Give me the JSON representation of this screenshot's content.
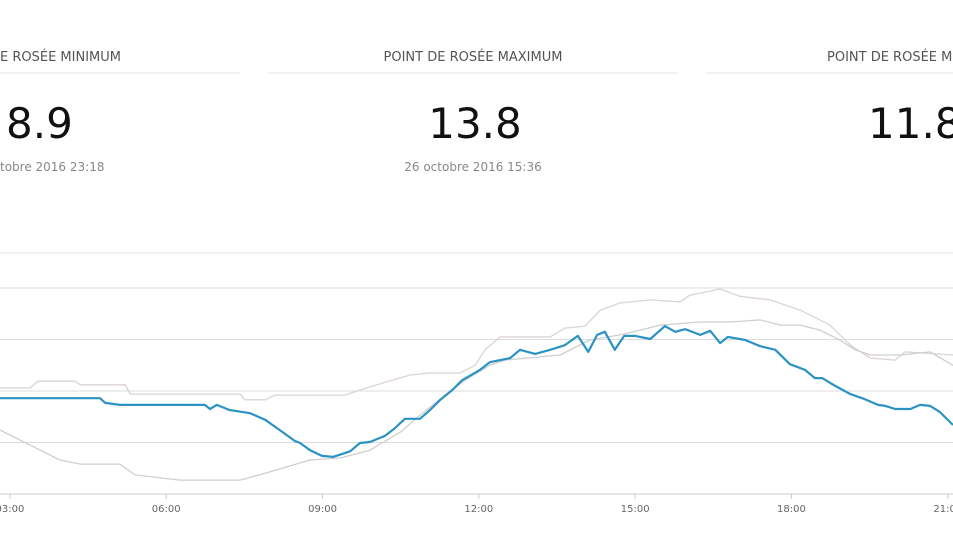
{
  "cards": [
    {
      "title": "E ROSÉE MINIMUM",
      "value": 8.9,
      "date": "tobre 2016 23:18"
    },
    {
      "title": "POINT DE ROSÉE MAXIMUM",
      "value": 13.8,
      "date": "26 octobre 2016 15:36"
    },
    {
      "title": "POINT DE ROSÉE M",
      "value": 11.8
    }
  ],
  "chart_data": {
    "type": "line",
    "xlim": [
      2.81,
      21.1
    ],
    "ylim": [
      10.5,
      15.18
    ],
    "xticks": [
      {
        "value": 3,
        "label": "03:00"
      },
      {
        "value": 6,
        "label": "06:00"
      },
      {
        "value": 9,
        "label": "09:00"
      },
      {
        "value": 12,
        "label": "12:00"
      },
      {
        "value": 15,
        "label": "15:00"
      },
      {
        "value": 18,
        "label": "18:00"
      },
      {
        "value": 21,
        "label": "21:00"
      }
    ],
    "yticks": [
      10.5,
      11.5,
      12.5,
      13.5,
      14.5
    ],
    "grid": true,
    "series": [
      {
        "color": "#ddd3d3",
        "x": [
          2.81,
          3.39,
          3.54,
          4.25,
          4.35,
          5.21,
          5.31,
          7.42,
          7.51,
          7.9,
          8.09,
          9.43,
          9.72,
          10.2,
          10.68,
          11.06,
          11.64,
          11.93,
          12.12,
          12.41,
          13.37,
          13.65,
          14.04,
          14.33,
          14.71,
          15.29,
          15.86,
          16.05,
          16.63,
          17.01,
          17.59,
          18.17,
          18.74,
          19.13,
          19.51,
          19.99,
          20.18,
          21.1
        ],
        "values": [
          12.56,
          12.56,
          12.69,
          12.69,
          12.62,
          12.62,
          12.44,
          12.44,
          12.33,
          12.33,
          12.42,
          12.42,
          12.52,
          12.67,
          12.81,
          12.85,
          12.85,
          13.0,
          13.3,
          13.55,
          13.55,
          13.72,
          13.76,
          14.07,
          14.21,
          14.27,
          14.23,
          14.36,
          14.48,
          14.34,
          14.27,
          14.07,
          13.78,
          13.39,
          13.14,
          13.1,
          13.26,
          13.2
        ]
      },
      {
        "color": "#cfcfcf",
        "x": [
          2.81,
          3.19,
          3.96,
          4.35,
          5.11,
          5.4,
          6.26,
          7.42,
          7.99,
          8.76,
          9.34,
          9.91,
          10.49,
          10.87,
          11.35,
          11.74,
          12.21,
          12.5,
          13.56,
          14.13,
          14.71,
          15.09,
          15.48,
          16.25,
          16.82,
          17.4,
          17.78,
          18.17,
          18.55,
          18.93,
          19.22,
          19.51,
          20.09,
          20.66,
          21.1
        ],
        "values": [
          11.74,
          11.55,
          11.16,
          11.08,
          11.08,
          10.87,
          10.77,
          10.77,
          10.93,
          11.16,
          11.2,
          11.35,
          11.7,
          12.03,
          12.42,
          12.71,
          13.0,
          13.1,
          13.2,
          13.49,
          13.59,
          13.68,
          13.78,
          13.84,
          13.84,
          13.88,
          13.78,
          13.78,
          13.68,
          13.49,
          13.3,
          13.2,
          13.2,
          13.26,
          13.0
        ]
      },
      {
        "color": "#2b93c4",
        "x": [
          2.81,
          4.73,
          4.83,
          5.11,
          6.74,
          6.84,
          6.97,
          7.22,
          7.61,
          7.9,
          8.18,
          8.47,
          8.57,
          8.76,
          8.99,
          9.2,
          9.53,
          9.72,
          9.91,
          10.2,
          10.39,
          10.58,
          10.87,
          11.06,
          11.26,
          11.49,
          11.68,
          12.02,
          12.21,
          12.41,
          12.6,
          12.79,
          13.08,
          13.37,
          13.65,
          13.9,
          14.1,
          14.27,
          14.42,
          14.61,
          14.79,
          15.0,
          15.29,
          15.57,
          15.77,
          15.96,
          16.25,
          16.44,
          16.63,
          16.78,
          17.11,
          17.4,
          17.69,
          17.97,
          18.26,
          18.45,
          18.59,
          18.84,
          19.13,
          19.41,
          19.66,
          19.8,
          19.99,
          20.28,
          20.47,
          20.66,
          20.85,
          21.1
        ],
        "values": [
          12.36,
          12.36,
          12.27,
          12.23,
          12.23,
          12.15,
          12.23,
          12.13,
          12.07,
          11.94,
          11.74,
          11.53,
          11.49,
          11.35,
          11.24,
          11.22,
          11.33,
          11.49,
          11.51,
          11.63,
          11.78,
          11.96,
          11.96,
          12.13,
          12.33,
          12.52,
          12.71,
          12.91,
          13.06,
          13.1,
          13.14,
          13.3,
          13.22,
          13.3,
          13.39,
          13.57,
          13.26,
          13.59,
          13.65,
          13.3,
          13.57,
          13.57,
          13.51,
          13.76,
          13.65,
          13.7,
          13.59,
          13.67,
          13.43,
          13.55,
          13.49,
          13.37,
          13.3,
          13.02,
          12.91,
          12.75,
          12.75,
          12.6,
          12.44,
          12.34,
          12.23,
          12.21,
          12.15,
          12.15,
          12.23,
          12.21,
          12.09,
          11.84
        ]
      }
    ]
  }
}
